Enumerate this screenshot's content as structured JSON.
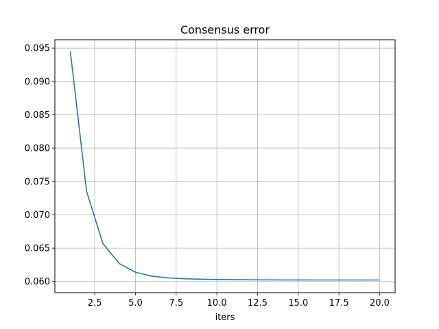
{
  "chart_data": {
    "type": "line",
    "title": "Consensus error",
    "xlabel": "iters",
    "ylabel": "",
    "xlim": [
      0.05,
      20.95
    ],
    "ylim": [
      0.05833,
      0.09625
    ],
    "grid": true,
    "x_ticks": [
      2.5,
      5.0,
      7.5,
      10.0,
      12.5,
      15.0,
      17.5,
      20.0
    ],
    "x_tick_labels": [
      "2.5",
      "5.0",
      "7.5",
      "10.0",
      "12.5",
      "15.0",
      "17.5",
      "20.0"
    ],
    "y_ticks": [
      0.06,
      0.065,
      0.07,
      0.075,
      0.08,
      0.085,
      0.09,
      0.095
    ],
    "y_tick_labels": [
      "0.060",
      "0.065",
      "0.070",
      "0.075",
      "0.080",
      "0.085",
      "0.090",
      "0.095"
    ],
    "series": [
      {
        "color": "#1f77b4",
        "x": [
          1,
          2,
          3,
          4,
          5,
          6,
          7,
          8,
          9,
          10,
          11,
          12,
          13,
          14,
          15,
          16,
          17,
          18,
          19,
          20
        ],
        "y": [
          0.0945,
          0.0735,
          0.0657,
          0.0627,
          0.0614,
          0.0608,
          0.06055,
          0.06042,
          0.06035,
          0.0603,
          0.06028,
          0.06026,
          0.06025,
          0.06024,
          0.06024,
          0.06023,
          0.06023,
          0.06023,
          0.06023,
          0.06023
        ]
      }
    ]
  }
}
